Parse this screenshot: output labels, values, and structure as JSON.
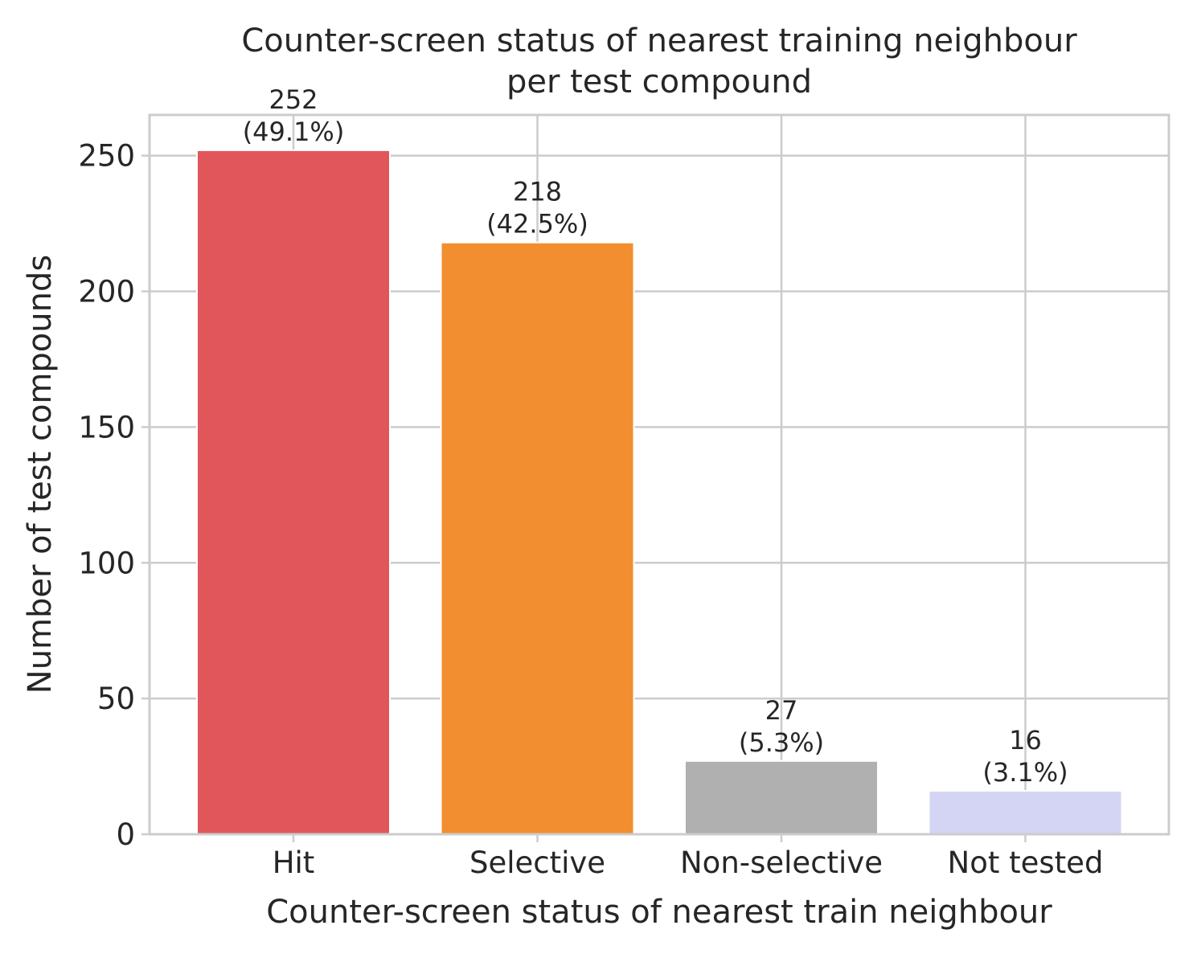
{
  "chart_data": {
    "type": "bar",
    "title_lines": [
      "Counter-screen status of nearest training neighbour",
      "per test compound"
    ],
    "xlabel": "Counter-screen status of nearest train neighbour",
    "ylabel": "Number of test compounds",
    "categories": [
      "Hit",
      "Selective",
      "Non-selective",
      "Not tested"
    ],
    "values": [
      252,
      218,
      27,
      16
    ],
    "value_labels": [
      "252",
      "218",
      "27",
      "16"
    ],
    "percent_labels": [
      "(49.1%)",
      "(42.5%)",
      "(5.3%)",
      "(3.1%)"
    ],
    "colors": [
      "#e1565a",
      "#f28e2f",
      "#b0b0b0",
      "#d4d4f4"
    ],
    "ylim": [
      0,
      265
    ],
    "yticks": [
      0,
      50,
      100,
      150,
      200,
      250
    ],
    "ytick_labels": [
      "0",
      "50",
      "100",
      "150",
      "200",
      "250"
    ],
    "grid": true,
    "grid_color": "#cccccc",
    "text_color": "#262626",
    "background": "#ffffff"
  }
}
